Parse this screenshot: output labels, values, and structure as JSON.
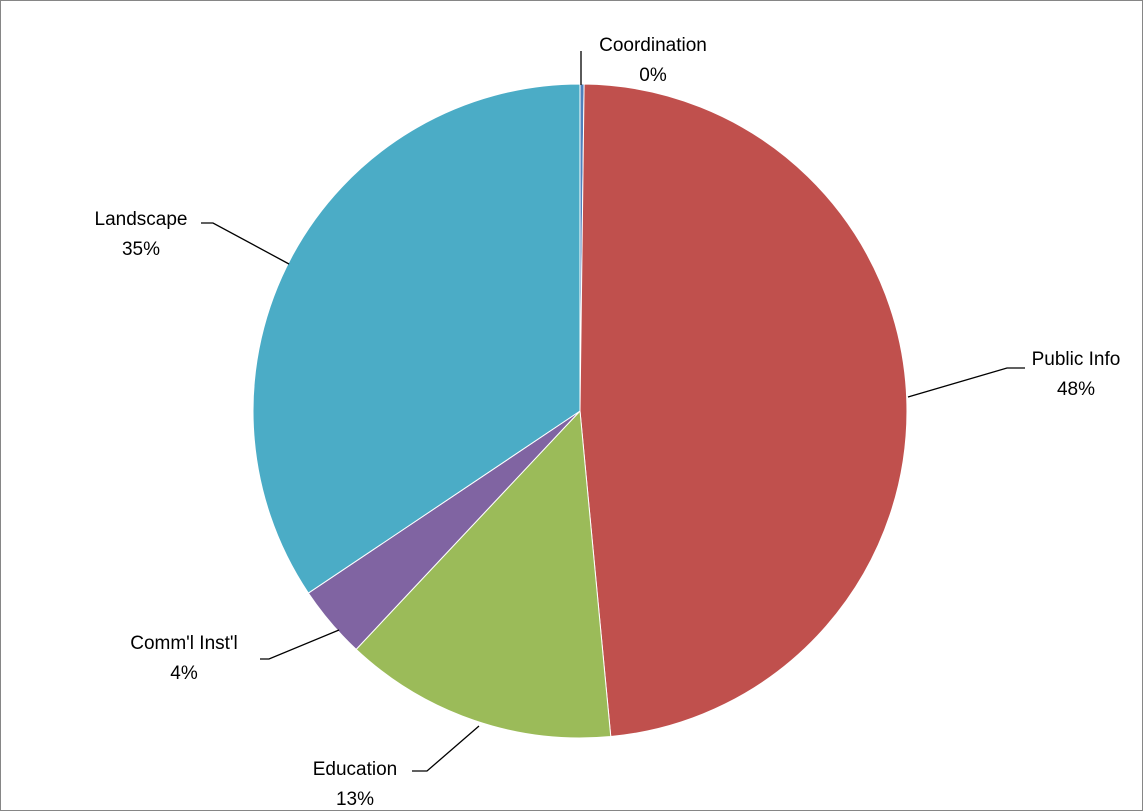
{
  "chart_data": {
    "type": "pie",
    "title": "",
    "start_angle_deg": 0,
    "direction": "clockwise",
    "slices": [
      {
        "label": "Coordination",
        "pct_label": "0%",
        "value": 0.2,
        "color": "#4F81BD"
      },
      {
        "label": "Public Info",
        "pct_label": "48%",
        "value": 48.3,
        "color": "#C0504D"
      },
      {
        "label": "Education",
        "pct_label": "13%",
        "value": 13.5,
        "color": "#9BBB59"
      },
      {
        "label": "Comm'l Inst'l",
        "pct_label": "4%",
        "value": 3.6,
        "color": "#8064A2"
      },
      {
        "label": "Landscape",
        "pct_label": "35%",
        "value": 34.4,
        "color": "#4BACC6"
      }
    ],
    "legend": "none"
  }
}
